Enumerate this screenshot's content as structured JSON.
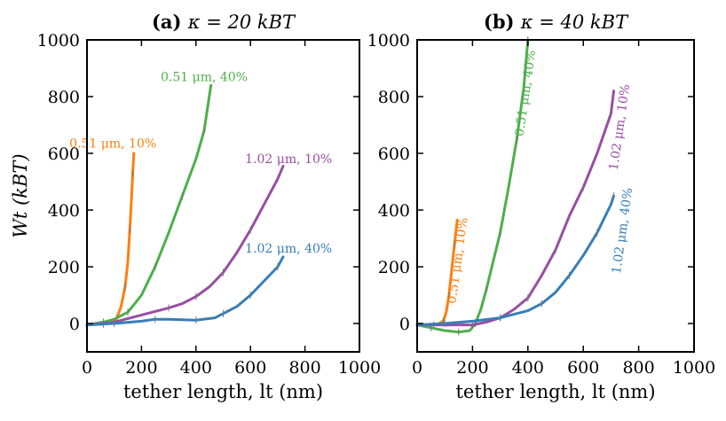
{
  "chart_data": [
    {
      "type": "line",
      "panel": "a",
      "title_prefix": "(a)",
      "title_math": "κ = 20 kBT",
      "xlabel": "tether length, lt (nm)",
      "ylabel": "Wt (kBT)",
      "xlim": [
        0,
        1000
      ],
      "ylim": [
        -100,
        1000
      ],
      "xticks": [
        "0",
        "200",
        "400",
        "600",
        "800",
        "1000"
      ],
      "yticks": [
        "0",
        "200",
        "400",
        "600",
        "800",
        "1000"
      ],
      "series": [
        {
          "name": "0.51 μm, 10%",
          "label": "0.51 μm, 10%",
          "color": "#ff7f0e",
          "points": [
            [
              0,
              -5
            ],
            [
              60,
              -2
            ],
            [
              95,
              5
            ],
            [
              110,
              20
            ],
            [
              125,
              60
            ],
            [
              140,
              130
            ],
            [
              150,
              220
            ],
            [
              157,
              330
            ],
            [
              163,
              430
            ],
            [
              168,
              530
            ],
            [
              172,
              600
            ]
          ],
          "label_anchor": [
            95,
            620
          ],
          "label_rotate": 0
        },
        {
          "name": "0.51 μm, 40%",
          "label": "0.51 μm, 40%",
          "color": "#4daf4a",
          "points": [
            [
              0,
              -5
            ],
            [
              60,
              5
            ],
            [
              100,
              15
            ],
            [
              150,
              40
            ],
            [
              200,
              100
            ],
            [
              250,
              200
            ],
            [
              300,
              320
            ],
            [
              350,
              450
            ],
            [
              400,
              580
            ],
            [
              430,
              680
            ],
            [
              455,
              840
            ]
          ],
          "label_anchor": [
            430,
            855
          ],
          "label_rotate": 0
        },
        {
          "name": "1.02 μm, 10%",
          "label": "1.02 μm, 10%",
          "color": "#984ea3",
          "points": [
            [
              0,
              -5
            ],
            [
              100,
              5
            ],
            [
              200,
              30
            ],
            [
              300,
              55
            ],
            [
              350,
              70
            ],
            [
              400,
              95
            ],
            [
              450,
              130
            ],
            [
              500,
              180
            ],
            [
              550,
              250
            ],
            [
              600,
              330
            ],
            [
              650,
              420
            ],
            [
              700,
              510
            ],
            [
              720,
              555
            ]
          ],
          "label_anchor": [
            740,
            565
          ],
          "label_rotate": 0
        },
        {
          "name": "1.02 μm, 40%",
          "label": "1.02 μm, 40%",
          "color": "#377eb8",
          "points": [
            [
              0,
              -5
            ],
            [
              100,
              0
            ],
            [
              200,
              8
            ],
            [
              250,
              15
            ],
            [
              300,
              15
            ],
            [
              400,
              12
            ],
            [
              470,
              20
            ],
            [
              500,
              35
            ],
            [
              550,
              60
            ],
            [
              600,
              100
            ],
            [
              650,
              150
            ],
            [
              700,
              200
            ],
            [
              720,
              235
            ]
          ],
          "label_anchor": [
            740,
            250
          ],
          "label_rotate": 0
        }
      ]
    },
    {
      "type": "line",
      "panel": "b",
      "title_prefix": "(b)",
      "title_math": "κ = 40 kBT",
      "xlabel": "tether length, lt (nm)",
      "ylabel": "",
      "xlim": [
        0,
        1000
      ],
      "ylim": [
        -100,
        1000
      ],
      "xticks": [
        "0",
        "200",
        "400",
        "600",
        "800",
        "1000"
      ],
      "yticks": [
        "0",
        "200",
        "400",
        "600",
        "800",
        "1000"
      ],
      "series": [
        {
          "name": "0.51 μm, 10%",
          "label": "0.51 μm, 10%",
          "color": "#ff7f0e",
          "points": [
            [
              0,
              -5
            ],
            [
              60,
              -5
            ],
            [
              80,
              0
            ],
            [
              95,
              10
            ],
            [
              105,
              40
            ],
            [
              115,
              100
            ],
            [
              125,
              190
            ],
            [
              135,
              280
            ],
            [
              145,
              365
            ]
          ],
          "label_anchor": [
            160,
            220
          ],
          "label_rotate": -82
        },
        {
          "name": "0.51 μm, 40%",
          "label": "0.51 μm, 40%",
          "color": "#4daf4a",
          "points": [
            [
              0,
              -5
            ],
            [
              50,
              -15
            ],
            [
              100,
              -25
            ],
            [
              150,
              -30
            ],
            [
              190,
              -25
            ],
            [
              210,
              0
            ],
            [
              230,
              50
            ],
            [
              250,
              120
            ],
            [
              270,
              200
            ],
            [
              300,
              320
            ],
            [
              330,
              480
            ],
            [
              360,
              650
            ],
            [
              385,
              830
            ],
            [
              400,
              1000
            ]
          ],
          "label_anchor": [
            405,
            810
          ],
          "label_rotate": -82
        },
        {
          "name": "1.02 μm, 10%",
          "label": "1.02 μm, 10%",
          "color": "#984ea3",
          "points": [
            [
              0,
              -5
            ],
            [
              200,
              -5
            ],
            [
              250,
              5
            ],
            [
              300,
              20
            ],
            [
              350,
              50
            ],
            [
              400,
              90
            ],
            [
              450,
              170
            ],
            [
              500,
              260
            ],
            [
              550,
              380
            ],
            [
              600,
              480
            ],
            [
              650,
              600
            ],
            [
              700,
              740
            ],
            [
              710,
              820
            ]
          ],
          "label_anchor": [
            745,
            690
          ],
          "label_rotate": -82
        },
        {
          "name": "1.02 μm, 40%",
          "label": "1.02 μm, 40%",
          "color": "#377eb8",
          "points": [
            [
              0,
              -5
            ],
            [
              100,
              0
            ],
            [
              200,
              8
            ],
            [
              300,
              20
            ],
            [
              400,
              45
            ],
            [
              450,
              70
            ],
            [
              500,
              110
            ],
            [
              550,
              170
            ],
            [
              600,
              240
            ],
            [
              650,
              320
            ],
            [
              700,
              420
            ],
            [
              710,
              450
            ]
          ],
          "label_anchor": [
            755,
            325
          ],
          "label_rotate": -82
        }
      ]
    }
  ]
}
